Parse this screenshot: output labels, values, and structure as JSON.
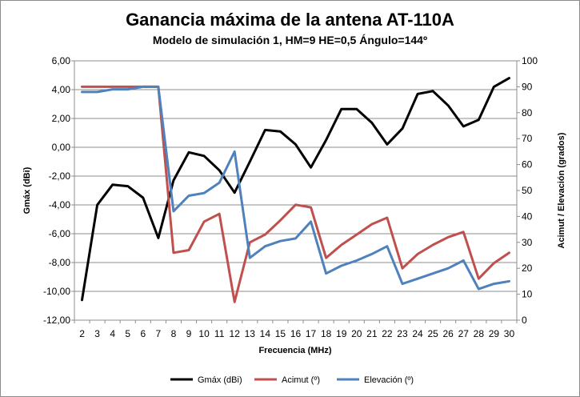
{
  "chart_data": {
    "type": "line",
    "title": "Ganancia máxima de la antena AT-110A",
    "subtitle": "Modelo de simulación 1, HM=9 HE=0,5 Ángulo=144º",
    "xlabel": "Frecuencia (MHz)",
    "ylabel": "Gmáx (dBi)",
    "y2label": "Acimut / Elevación  (grados)",
    "x": [
      2,
      3,
      4,
      5,
      6,
      7,
      8,
      9,
      10,
      11,
      12,
      13,
      14,
      15,
      16,
      17,
      18,
      19,
      20,
      21,
      22,
      23,
      24,
      25,
      26,
      27,
      28,
      29,
      30
    ],
    "x_tick_labels": [
      "2",
      "3",
      "4",
      "5",
      "6",
      "7",
      "8",
      "9",
      "10",
      "11",
      "12",
      "13",
      "14",
      "15",
      "16",
      "17",
      "18",
      "19",
      "20",
      "21",
      "22",
      "23",
      "24",
      "25",
      "26",
      "27",
      "28",
      "29",
      "30"
    ],
    "ylim": [
      -12,
      6
    ],
    "y_tick_labels": [
      "6,00",
      "4,00",
      "2,00",
      "0,00",
      "-2,00",
      "-4,00",
      "-6,00",
      "-8,00",
      "-10,00",
      "-12,00"
    ],
    "y2lim": [
      0,
      100
    ],
    "y2_tick_labels": [
      "100",
      "90",
      "80",
      "70",
      "60",
      "50",
      "40",
      "30",
      "20",
      "10",
      "0"
    ],
    "grid": "horizontal",
    "legend_position": "bottom",
    "series": [
      {
        "name": "Gmáx (dBi)",
        "axis": "left",
        "color": "#000000",
        "values": [
          -10.6,
          -4.0,
          -2.6,
          -2.7,
          -3.5,
          -6.3,
          -2.3,
          -0.35,
          -0.6,
          -1.6,
          -3.15,
          -1.0,
          1.2,
          1.1,
          0.2,
          -1.4,
          0.5,
          2.65,
          2.65,
          1.7,
          0.2,
          1.3,
          3.7,
          3.9,
          2.9,
          1.45,
          1.9,
          4.2,
          4.8
        ]
      },
      {
        "name": "Acimut (º)",
        "axis": "right",
        "color": "#c0504d",
        "values": [
          90,
          90,
          90,
          90,
          90,
          90,
          26,
          27,
          38,
          41,
          7,
          30,
          33,
          38.5,
          44.5,
          43.5,
          24,
          29,
          33,
          37,
          39.5,
          20,
          25.5,
          29,
          32,
          34,
          16,
          22,
          26
        ]
      },
      {
        "name": "Elevación (º)",
        "axis": "right",
        "color": "#4f81bd",
        "values": [
          88,
          88,
          89,
          89,
          90,
          90,
          42,
          48,
          49,
          53,
          65,
          24,
          28.5,
          30.5,
          31.5,
          38,
          18,
          21,
          23,
          25.5,
          28.5,
          14,
          16,
          18,
          20,
          23,
          12,
          14,
          15
        ]
      }
    ]
  }
}
